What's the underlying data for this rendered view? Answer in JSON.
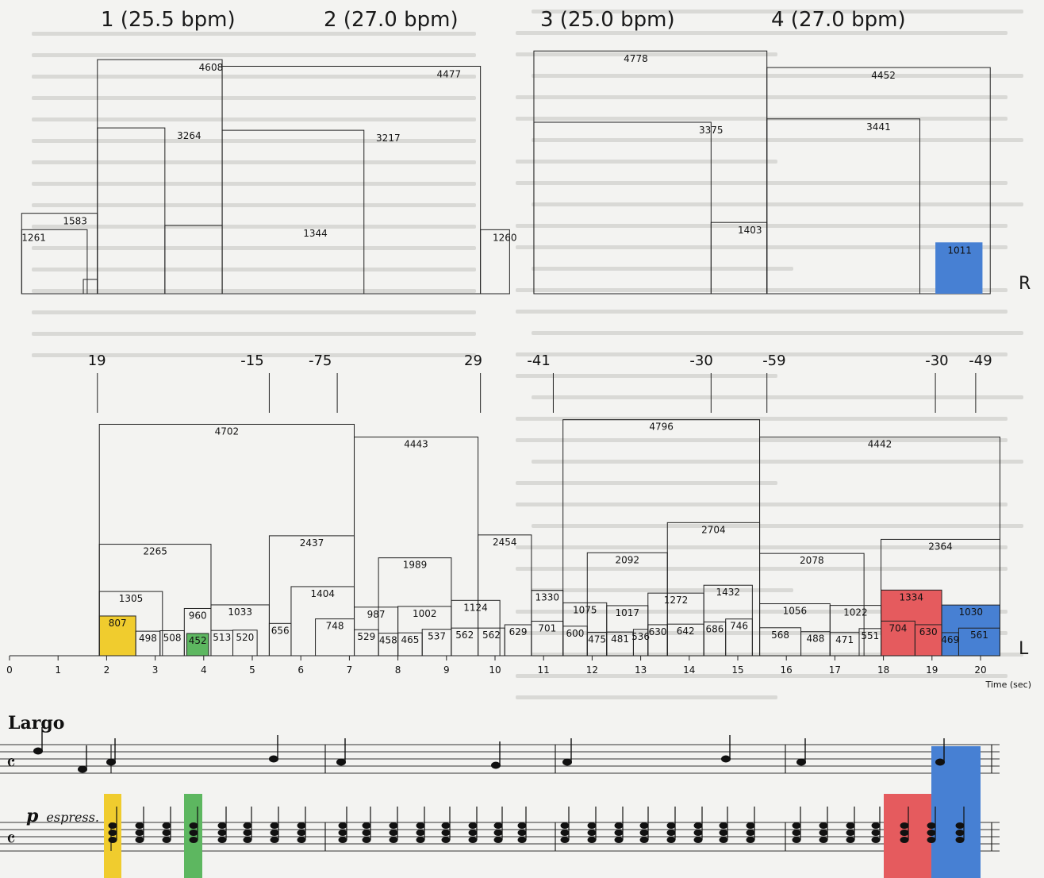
{
  "phrases": [
    {
      "label": "1 (25.5 bpm)"
    },
    {
      "label": "2 (27.0 bpm)"
    },
    {
      "label": "3 (25.0 bpm)"
    },
    {
      "label": "4 (27.0 bpm)"
    }
  ],
  "hands": {
    "right": "R",
    "left": "L"
  },
  "colors": {
    "yellow": "#f0cc2e",
    "green": "#5db760",
    "red": "#e55b5e",
    "blue": "#4780d3"
  },
  "chart_data": [
    {
      "type": "bar",
      "hand": "R",
      "values": [
        1261,
        1583,
        4608,
        3264,
        1344,
        4477,
        3217,
        1260,
        4778,
        3375,
        1403,
        4452,
        3441,
        1011
      ],
      "annotations": [
        "19",
        "-15",
        "-75",
        "29",
        "-41",
        "-30",
        "-59",
        "-30",
        "-49"
      ]
    },
    {
      "type": "bar",
      "hand": "L",
      "values": [
        807,
        1305,
        2265,
        4702,
        498,
        508,
        960,
        452,
        513,
        520,
        1033,
        2437,
        656,
        1404,
        748,
        529,
        987,
        4443,
        458,
        1989,
        465,
        1002,
        537,
        562,
        1124,
        2454,
        562,
        629,
        1330,
        701,
        4796,
        600,
        1075,
        475,
        2092,
        481,
        1017,
        536,
        630,
        1272,
        642,
        2704,
        686,
        1432,
        746,
        568,
        1056,
        488,
        2078,
        471,
        1022,
        551,
        4442,
        2364,
        1334,
        704,
        630,
        469,
        1030,
        561
      ],
      "xlabel": "Time (sec)",
      "xticks": [
        "0",
        "1",
        "2",
        "3",
        "4",
        "5",
        "6",
        "7",
        "8",
        "9",
        "10",
        "11",
        "12",
        "13",
        "14",
        "15",
        "16",
        "17",
        "18",
        "19",
        "20"
      ]
    }
  ],
  "score": {
    "title": "Largo",
    "dynamic": "p",
    "expression": "espress."
  }
}
